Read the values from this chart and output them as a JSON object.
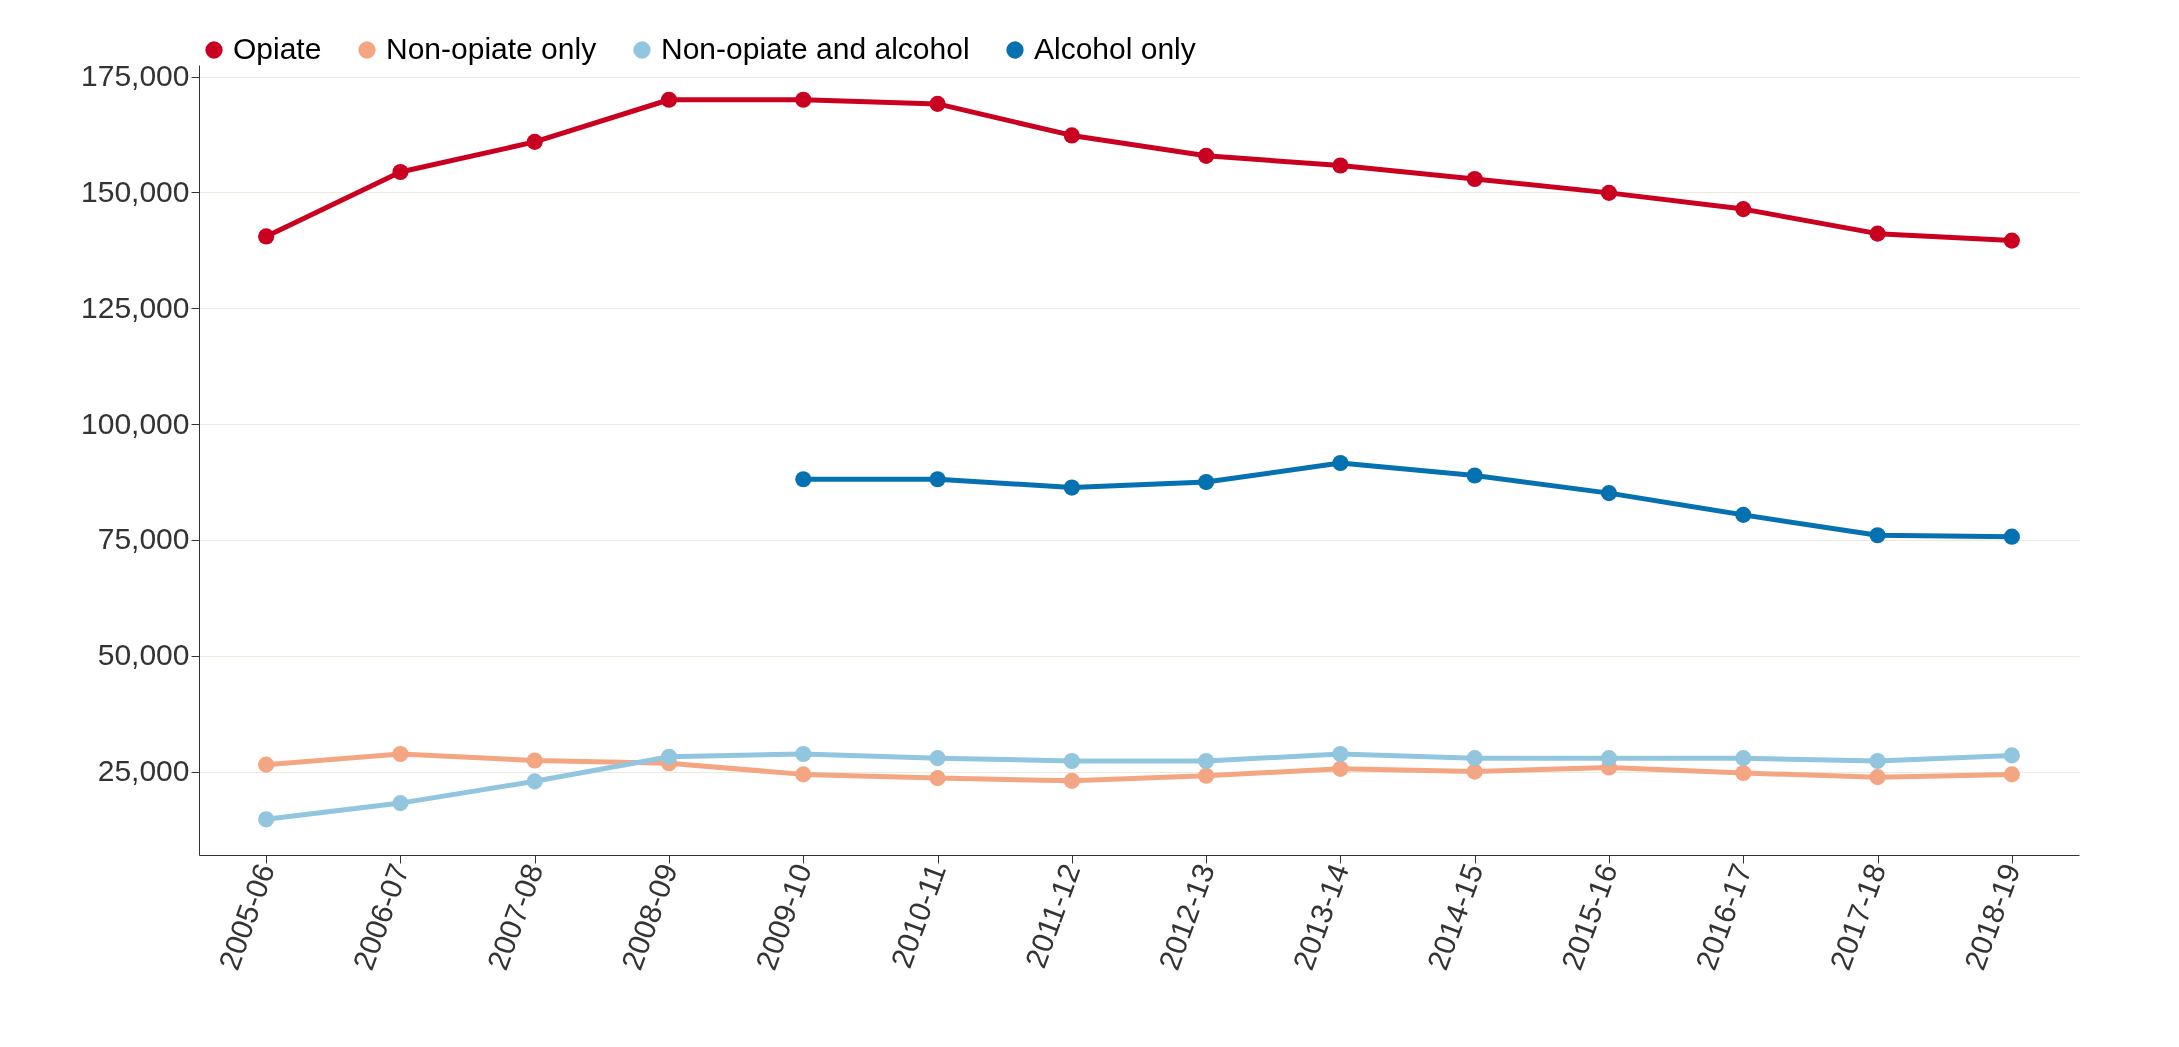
{
  "chart_data": {
    "type": "line",
    "categories": [
      "2005-06",
      "2006-07",
      "2007-08",
      "2008-09",
      "2009-10",
      "2010-11",
      "2011-12",
      "2012-13",
      "2013-14",
      "2014-15",
      "2015-16",
      "2016-17",
      "2017-18",
      "2018-19"
    ],
    "series": [
      {
        "name": "Opiate",
        "color": "#ca0020",
        "values": [
          140500,
          154400,
          160900,
          170000,
          170000,
          169100,
          162300,
          157900,
          155800,
          152900,
          149900,
          146400,
          141100,
          139600
        ]
      },
      {
        "name": "Non-opiate only",
        "color": "#f4a582",
        "values": [
          26500,
          28800,
          27400,
          26800,
          24400,
          23600,
          23000,
          24100,
          25600,
          25000,
          25900,
          24700,
          23800,
          24400
        ]
      },
      {
        "name": "Non-opiate and alcohol",
        "color": "#92c5de",
        "values": [
          14700,
          18200,
          22900,
          28200,
          28800,
          27900,
          27300,
          27300,
          28800,
          27900,
          27900,
          27900,
          27300,
          28500
        ]
      },
      {
        "name": "Alcohol only",
        "color": "#0571b0",
        "values": [
          null,
          null,
          null,
          null,
          88100,
          88100,
          86300,
          87500,
          91600,
          88900,
          85100,
          80400,
          76000,
          75700
        ]
      }
    ],
    "ylim": [
      7000,
      177500
    ],
    "yticks": [
      {
        "value": 25000,
        "label": "25,000"
      },
      {
        "value": 50000,
        "label": "50,000"
      },
      {
        "value": 75000,
        "label": "75,000"
      },
      {
        "value": 100000,
        "label": "100,000"
      },
      {
        "value": 125000,
        "label": "125,000"
      },
      {
        "value": 150000,
        "label": "150,000"
      },
      {
        "value": 175000,
        "label": "175,000"
      }
    ],
    "grid": "y",
    "legend": "top",
    "marker": "circle",
    "line_style": "solid"
  }
}
